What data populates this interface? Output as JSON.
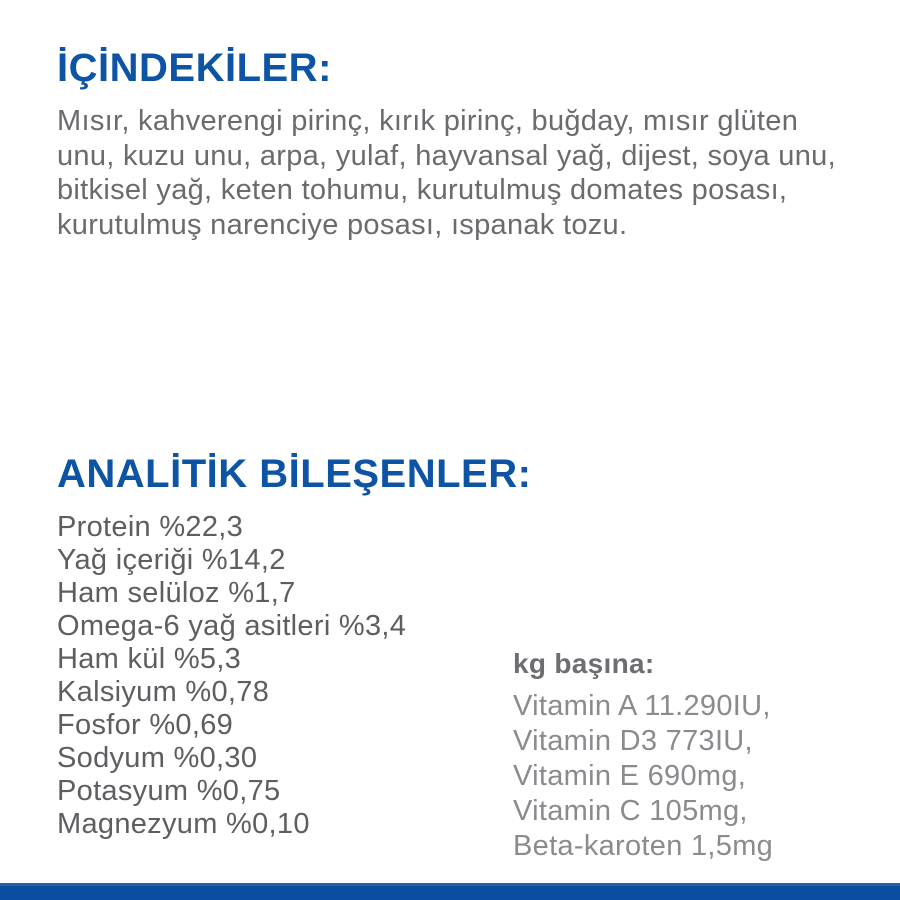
{
  "page": {
    "background_color": "#ffffff",
    "accent_blue": "#0e54a4",
    "bar_blue": "#0b4da1",
    "bar_top_blue": "#2a5fae",
    "body_gray": "#6a6b6e",
    "list_gray": "#5d5e61",
    "vitamin_gray": "#8a8b8e"
  },
  "ingredients": {
    "heading": "İÇİNDEKİLER:",
    "text": "Mısır, kahverengi pirinç, kırık pirinç, buğday, mısır glüten unu, kuzu unu, arpa, yulaf, hayvansal yağ, dijest, soya unu, bitkisel yağ, keten tohumu, kurutulmuş domates posası, kurutulmuş narenciye posası, ıspanak tozu."
  },
  "analytics": {
    "heading": "ANALİTİK BİLEŞENLER:",
    "items": [
      "Protein %22,3",
      "Yağ içeriği %14,2",
      "Ham selüloz %1,7",
      "Omega-6 yağ asitleri %3,4",
      "Ham kül %5,3",
      "Kalsiyum %0,78",
      "Fosfor %0,69",
      "Sodyum %0,30",
      "Potasyum %0,75",
      "Magnezyum %0,10"
    ],
    "per_kg": {
      "label": "kg başına:",
      "items": [
        "Vitamin A 11.290IU,",
        "Vitamin D3 773IU,",
        "Vitamin E 690mg,",
        "Vitamin C 105mg,",
        "Beta-karoten 1,5mg"
      ]
    }
  }
}
